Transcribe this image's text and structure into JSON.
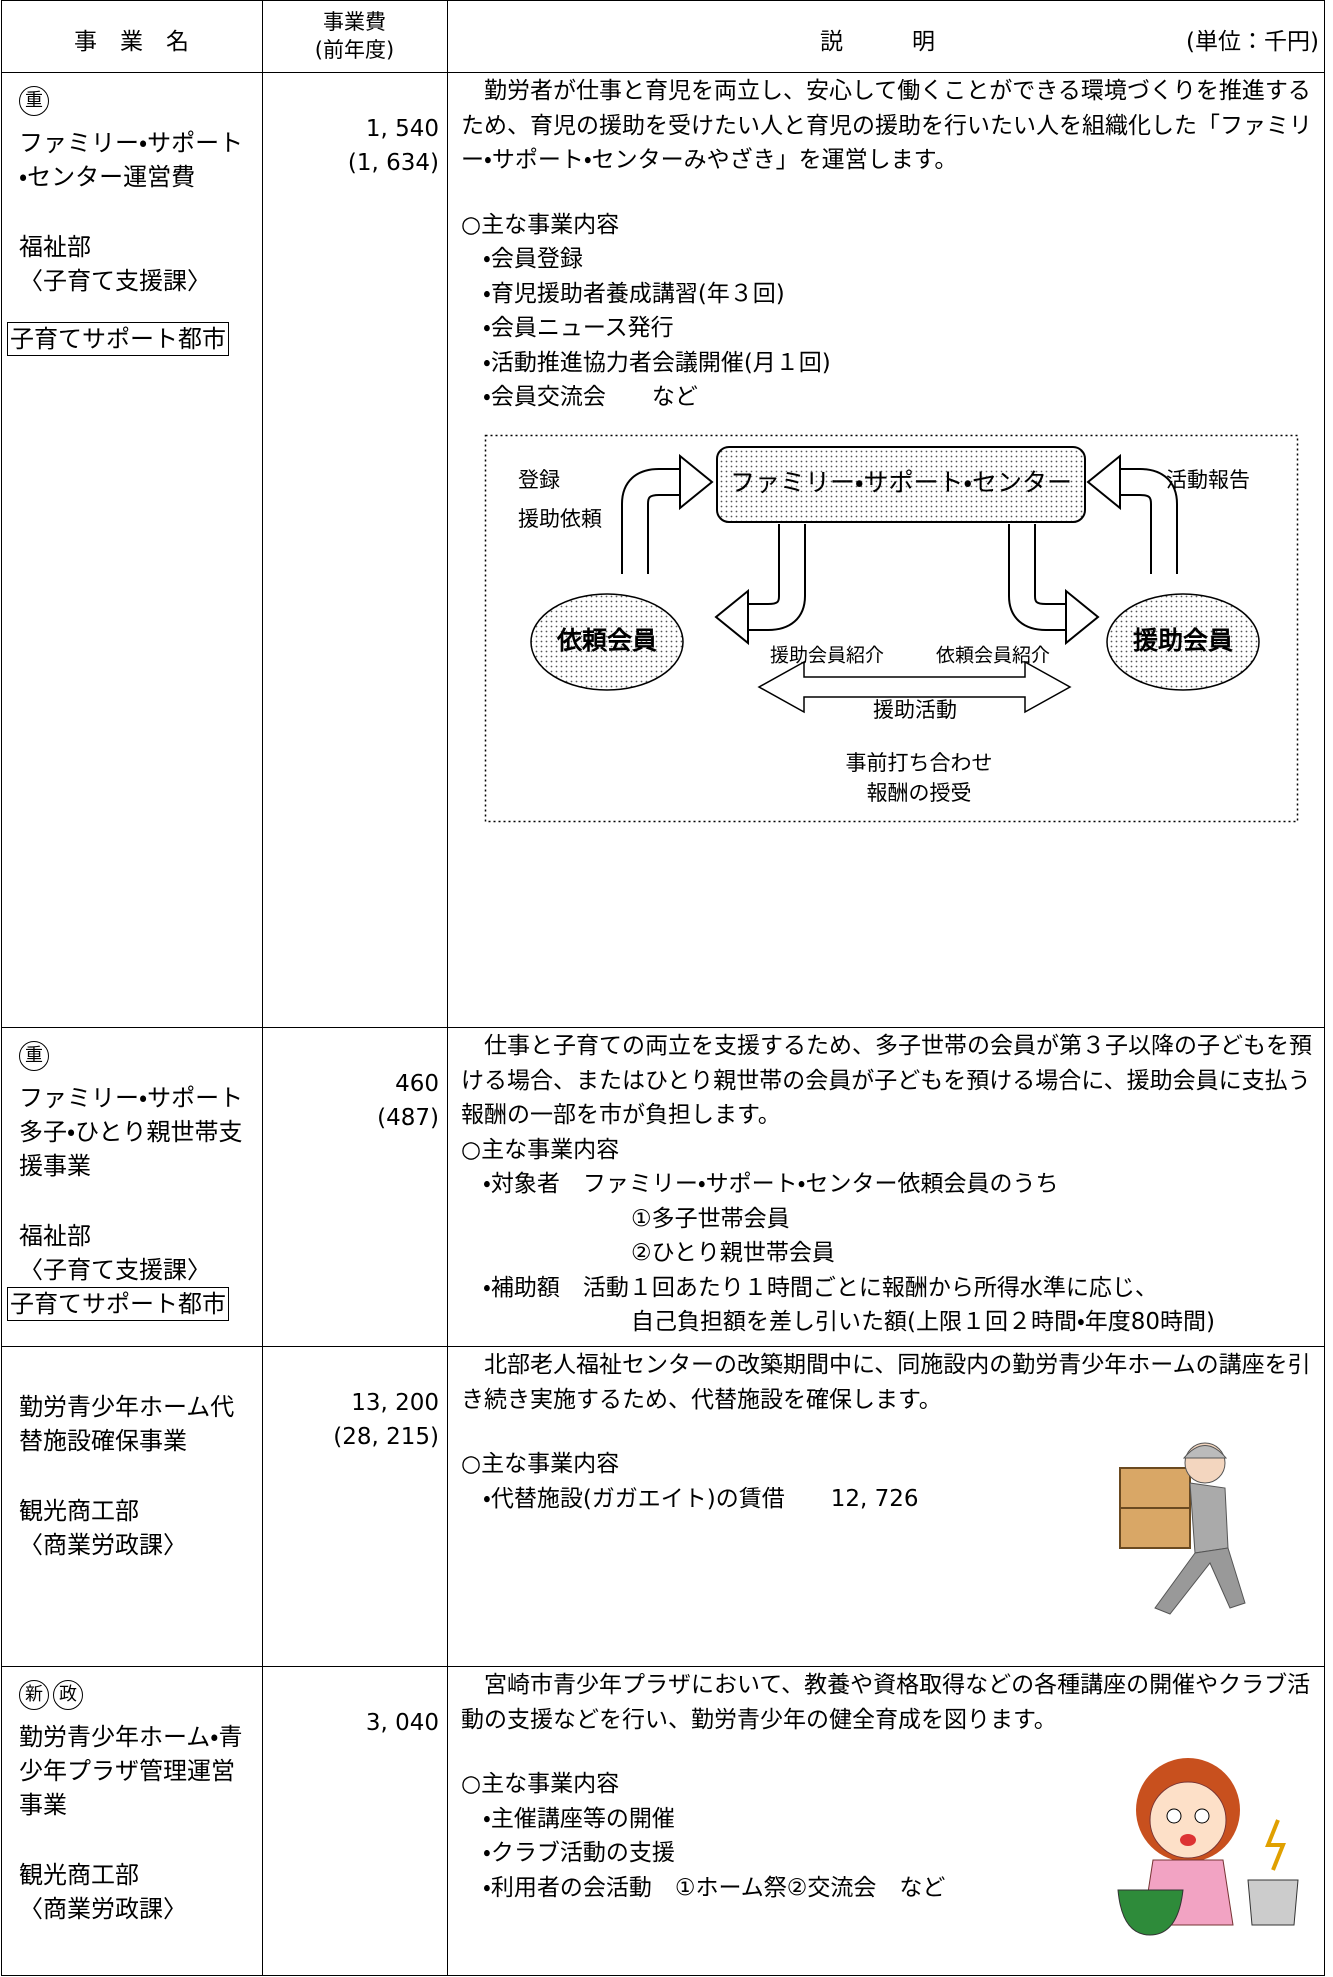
{
  "header": {
    "name": "事　業　名",
    "cost": "事業費",
    "cost_prev": "(前年度)",
    "description": "説　　　明",
    "unit": "(単位：千円)"
  },
  "rows": [
    {
      "badges": [
        "重"
      ],
      "name": "ファミリー・サポート・センター運営費",
      "department": "福祉部",
      "division": "〈子育て支援課〉",
      "tag": "子育てサポート都市",
      "cost": "1, 540",
      "cost_prev": "(1, 634)",
      "intro": "　勤労者が仕事と育児を両立し、安心して働くことができる環境づくりを推進するため、育児の援助を受けたい人と育児の援助を行いたい人を組織化した「ファミリー・サポート・センターみやざき」を運営します。",
      "content_heading": "○主な事業内容",
      "items": [
        {
          "text": "・会員登録"
        },
        {
          "text": "・育児援助者養成講習(年３回)"
        },
        {
          "text": "・会員ニュース発行"
        },
        {
          "text": "・活動推進協力者会議開催(月１回)"
        },
        {
          "text": "・会員交流会　　など"
        }
      ],
      "diagram": {
        "center": "ファミリー・サポート・センター",
        "left_top": "登録",
        "left_bottom": "援助依頼",
        "right_top": "活動報告",
        "node_left": "依頼会員",
        "node_right": "援助会員",
        "label_left": "援助会員紹介",
        "label_right": "依頼会員紹介",
        "activity": "援助活動",
        "notes": [
          "事前打ち合わせ",
          "報酬の授受"
        ]
      }
    },
    {
      "badges": [
        "重"
      ],
      "name": "ファミリー・サポート多子・ひとり親世帯支援事業",
      "department": "福祉部",
      "division": "〈子育て支援課〉",
      "tag": "子育てサポート都市",
      "cost": "460",
      "cost_prev": "(487)",
      "intro": "　仕事と子育ての両立を支援するため、多子世帯の会員が第３子以降の子どもを預ける場合、またはひとり親世帯の会員が子どもを預ける場合に、援助会員に支払う報酬の一部を市が負担します。",
      "content_heading": "○主な事業内容",
      "items": [
        {
          "text": "・対象者　ファミリー・サポート・センター依頼会員のうち",
          "sub": [
            "①多子世帯会員",
            "②ひとり親世帯会員"
          ]
        },
        {
          "text": "・補助額　活動１回あたり１時間ごとに報酬から所得水準に応じ、",
          "sub": [
            "自己負担額を差し引いた額(上限１回２時間・年度80時間)"
          ]
        }
      ]
    },
    {
      "name": "勤労青少年ホーム代替施設確保事業",
      "department": "観光商工部",
      "division": "〈商業労政課〉",
      "cost": "13, 200",
      "cost_prev": "(28, 215)",
      "intro": "　北部老人福祉センターの改築期間中に、同施設内の勤労青少年ホームの講座を引き続き実施するため、代替施設を確保します。",
      "content_heading": "○主な事業内容",
      "items": [
        {
          "text": "・代替施設(ガガエイト)の賃借　　12, 726"
        }
      ]
    },
    {
      "badges": [
        "新",
        "政"
      ],
      "name": "勤労青少年ホーム・青少年プラザ管理運営事業",
      "department": "観光商工部",
      "division": "〈商業労政課〉",
      "cost": "3, 040",
      "intro": "　宮崎市青少年プラザにおいて、教養や資格取得などの各種講座の開催やクラブ活動の支援などを行い、勤労青少年の健全育成を図ります。",
      "content_heading": "○主な事業内容",
      "items": [
        {
          "text": "・主催講座等の開催"
        },
        {
          "text": "・クラブ活動の支援"
        },
        {
          "text": "・利用者の会活動　①ホーム祭②交流会　など"
        }
      ]
    }
  ]
}
